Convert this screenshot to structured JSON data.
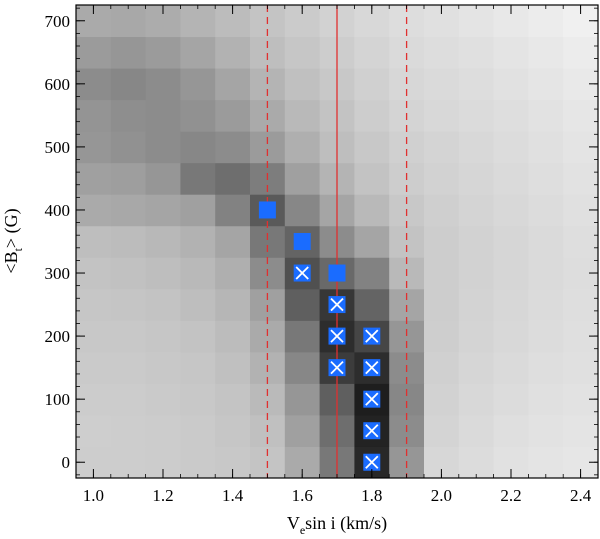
{
  "chart_data": {
    "type": "heatmap",
    "title": "",
    "xlabel": {
      "prefix": "V",
      "sub": "e",
      "suffix": "sin i (km/s)"
    },
    "ylabel": {
      "prefix": "<B",
      "sub": "t",
      "suffix": "> (G)"
    },
    "xlim": [
      0.95,
      2.45
    ],
    "ylim": [
      -25,
      725
    ],
    "x_ticks": [
      1.0,
      1.2,
      1.4,
      1.6,
      1.8,
      2.0,
      2.2,
      2.4
    ],
    "x_tick_labels": [
      "1.0",
      "1.2",
      "1.4",
      "1.6",
      "1.8",
      "2.0",
      "2.2",
      "2.4"
    ],
    "y_ticks": [
      0,
      100,
      200,
      300,
      400,
      500,
      600,
      700
    ],
    "y_tick_labels": [
      "0",
      "100",
      "200",
      "300",
      "400",
      "500",
      "600",
      "700"
    ],
    "grid": false,
    "heatmap": {
      "x": [
        1.0,
        1.1,
        1.2,
        1.3,
        1.4,
        1.5,
        1.6,
        1.7,
        1.8,
        1.9,
        2.0,
        2.1,
        2.2,
        2.3,
        2.4
      ],
      "y": [
        0,
        50,
        100,
        150,
        200,
        250,
        300,
        350,
        400,
        450,
        500,
        550,
        600,
        650,
        700
      ],
      "gray_scale_note": "values are gray levels, 0 = black, 255 = white; rows ordered by y ascending",
      "values": [
        [
          205,
          205,
          204,
          202,
          200,
          196,
          170,
          120,
          40,
          150,
          215,
          220,
          225,
          228,
          230
        ],
        [
          206,
          205,
          204,
          202,
          198,
          192,
          160,
          110,
          35,
          140,
          212,
          218,
          223,
          226,
          228
        ],
        [
          204,
          204,
          202,
          200,
          196,
          186,
          150,
          95,
          30,
          135,
          210,
          216,
          220,
          224,
          226
        ],
        [
          202,
          202,
          200,
          198,
          192,
          178,
          135,
          60,
          45,
          140,
          208,
          214,
          218,
          222,
          224
        ],
        [
          200,
          200,
          198,
          195,
          188,
          170,
          120,
          45,
          70,
          150,
          206,
          212,
          216,
          220,
          223
        ],
        [
          198,
          197,
          195,
          190,
          182,
          160,
          95,
          55,
          100,
          165,
          205,
          211,
          215,
          219,
          222
        ],
        [
          195,
          193,
          190,
          185,
          175,
          140,
          80,
          105,
          130,
          185,
          205,
          210,
          214,
          218,
          221
        ],
        [
          190,
          188,
          184,
          178,
          165,
          120,
          100,
          140,
          165,
          195,
          205,
          210,
          214,
          218,
          222
        ],
        [
          170,
          168,
          165,
          160,
          130,
          90,
          135,
          165,
          185,
          200,
          207,
          212,
          216,
          220,
          224
        ],
        [
          160,
          158,
          150,
          120,
          110,
          125,
          160,
          180,
          195,
          205,
          210,
          214,
          218,
          222,
          226
        ],
        [
          150,
          145,
          140,
          135,
          140,
          155,
          175,
          190,
          200,
          208,
          212,
          216,
          220,
          224,
          228
        ],
        [
          148,
          142,
          140,
          145,
          155,
          170,
          185,
          195,
          205,
          212,
          216,
          219,
          222,
          226,
          230
        ],
        [
          140,
          135,
          140,
          150,
          165,
          180,
          192,
          200,
          208,
          215,
          218,
          221,
          225,
          229,
          233
        ],
        [
          155,
          150,
          155,
          165,
          178,
          190,
          198,
          205,
          212,
          218,
          221,
          224,
          228,
          232,
          236
        ],
        [
          170,
          168,
          172,
          180,
          188,
          196,
          203,
          210,
          216,
          221,
          224,
          228,
          232,
          236,
          240
        ]
      ]
    },
    "vertical_lines": [
      {
        "x": 1.5,
        "style": "dashed",
        "color": "#e03030"
      },
      {
        "x": 1.7,
        "style": "solid",
        "color": "#e03030"
      },
      {
        "x": 1.9,
        "style": "dashed",
        "color": "#e03030"
      }
    ],
    "square_markers": [
      {
        "x": 1.5,
        "y": 400
      },
      {
        "x": 1.6,
        "y": 350
      },
      {
        "x": 1.7,
        "y": 300
      }
    ],
    "cross_markers": [
      {
        "x": 1.6,
        "y": 300
      },
      {
        "x": 1.7,
        "y": 250
      },
      {
        "x": 1.7,
        "y": 200
      },
      {
        "x": 1.7,
        "y": 150
      },
      {
        "x": 1.8,
        "y": 200
      },
      {
        "x": 1.8,
        "y": 150
      },
      {
        "x": 1.8,
        "y": 100
      },
      {
        "x": 1.8,
        "y": 50
      },
      {
        "x": 1.8,
        "y": 0
      }
    ],
    "colors": {
      "marker": "#1a6cff",
      "cross": "#ffffff",
      "line": "#e03030",
      "axis": "#000000"
    }
  }
}
